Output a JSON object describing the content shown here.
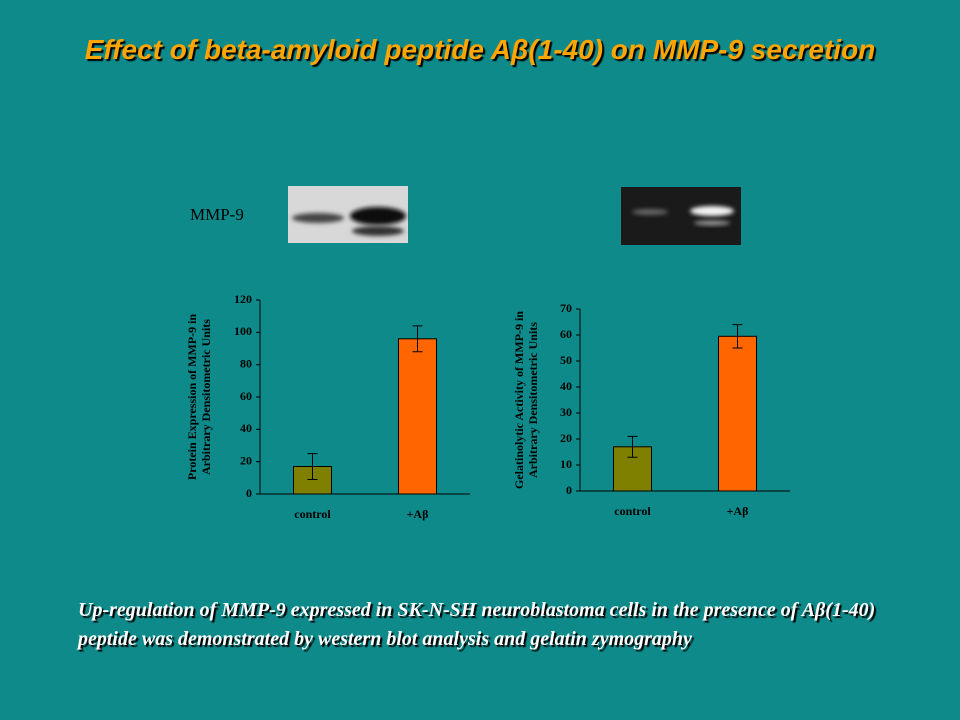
{
  "title": "Effect of beta-amyloid peptide Aβ(1-40) on MMP-9 secretion",
  "blot_label": "MMP-9",
  "caption": "Up-regulation of MMP-9 expressed in SK-N-SH neuroblastoma cells in the presence of Aβ(1-40) peptide was demonstrated by western blot analysis and gelatin zymography",
  "chart_data": [
    {
      "type": "bar",
      "y_label": [
        "Protein Expression of MMP-9 in",
        "Arbitrary Densitometric Units"
      ],
      "categories": [
        "control",
        "+Aβ"
      ],
      "values": [
        17,
        96
      ],
      "errors": [
        8,
        8
      ],
      "colors": [
        "#7f7f00",
        "#ff6600"
      ],
      "ylim": [
        0,
        120
      ],
      "yticks": [
        0,
        20,
        40,
        60,
        80,
        100,
        120
      ]
    },
    {
      "type": "bar",
      "y_label": [
        "Gelatinolytic Activity of MMP-9 in",
        "Arbitrary Densitometric Units"
      ],
      "categories": [
        "control",
        "+Aβ"
      ],
      "values": [
        17,
        59.5
      ],
      "errors": [
        4,
        4.5
      ],
      "colors": [
        "#7f7f00",
        "#ff6600"
      ],
      "ylim": [
        0,
        70
      ],
      "yticks": [
        0,
        10,
        20,
        30,
        40,
        50,
        60,
        70
      ]
    }
  ]
}
